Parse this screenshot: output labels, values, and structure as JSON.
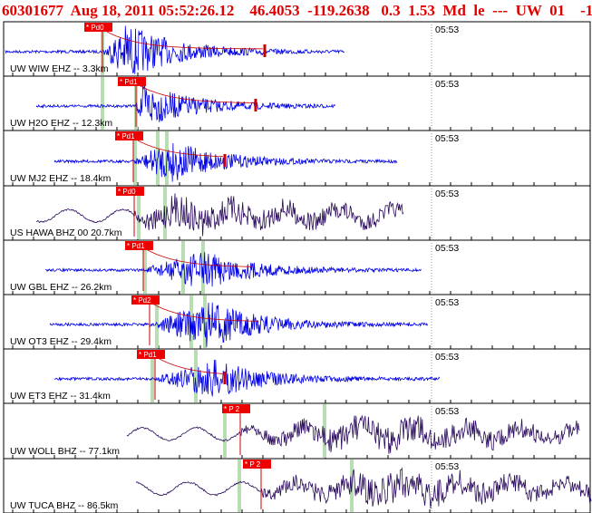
{
  "header": {
    "title": "60301677  Aug 18, 2011 05:52:26.12    46.4053  -119.2638   0.3  1.53  Md  le  ---  UW  01    -1"
  },
  "colors": {
    "title": "#e00000",
    "short_period": "#0000e6",
    "broadband": "#2a0a5c",
    "pick_box": "#ee0000",
    "pick_line": "#cc0000",
    "window_mark": "#b8ddb2",
    "frame": "#000000"
  },
  "traces": [
    {
      "label": "UW WIW EHZ -- 3.3km",
      "time": "05:53",
      "pick": "* Pd0",
      "kind": "sp"
    },
    {
      "label": "UW H2O EHZ -- 12.3km",
      "time": "05:53",
      "pick": "* Pd1",
      "kind": "sp"
    },
    {
      "label": "UW MJ2 EHZ -- 18.4km",
      "time": "05:53",
      "pick": "* Pd1",
      "kind": "sp"
    },
    {
      "label": "US HAWA BHZ 00 20.7km",
      "time": "05:53",
      "pick": "* Pd0",
      "kind": "bb"
    },
    {
      "label": "UW GBL EHZ -- 26.2km",
      "time": "05:53",
      "pick": "* Pd1",
      "kind": "sp"
    },
    {
      "label": "UW OT3 EHZ -- 29.4km",
      "time": "05:53",
      "pick": "* Pd2",
      "kind": "sp"
    },
    {
      "label": "UW ET3 EHZ -- 31.4km",
      "time": "05:53",
      "pick": "* Pd1",
      "kind": "sp"
    },
    {
      "label": "UW WOLL BHZ -- 77.1km",
      "time": "05:53",
      "pick": "* P 2",
      "kind": "bb"
    },
    {
      "label": "UW TUCA BHZ -- 86.5km",
      "time": "05:53",
      "pick": "* P 2",
      "kind": "bb"
    }
  ]
}
